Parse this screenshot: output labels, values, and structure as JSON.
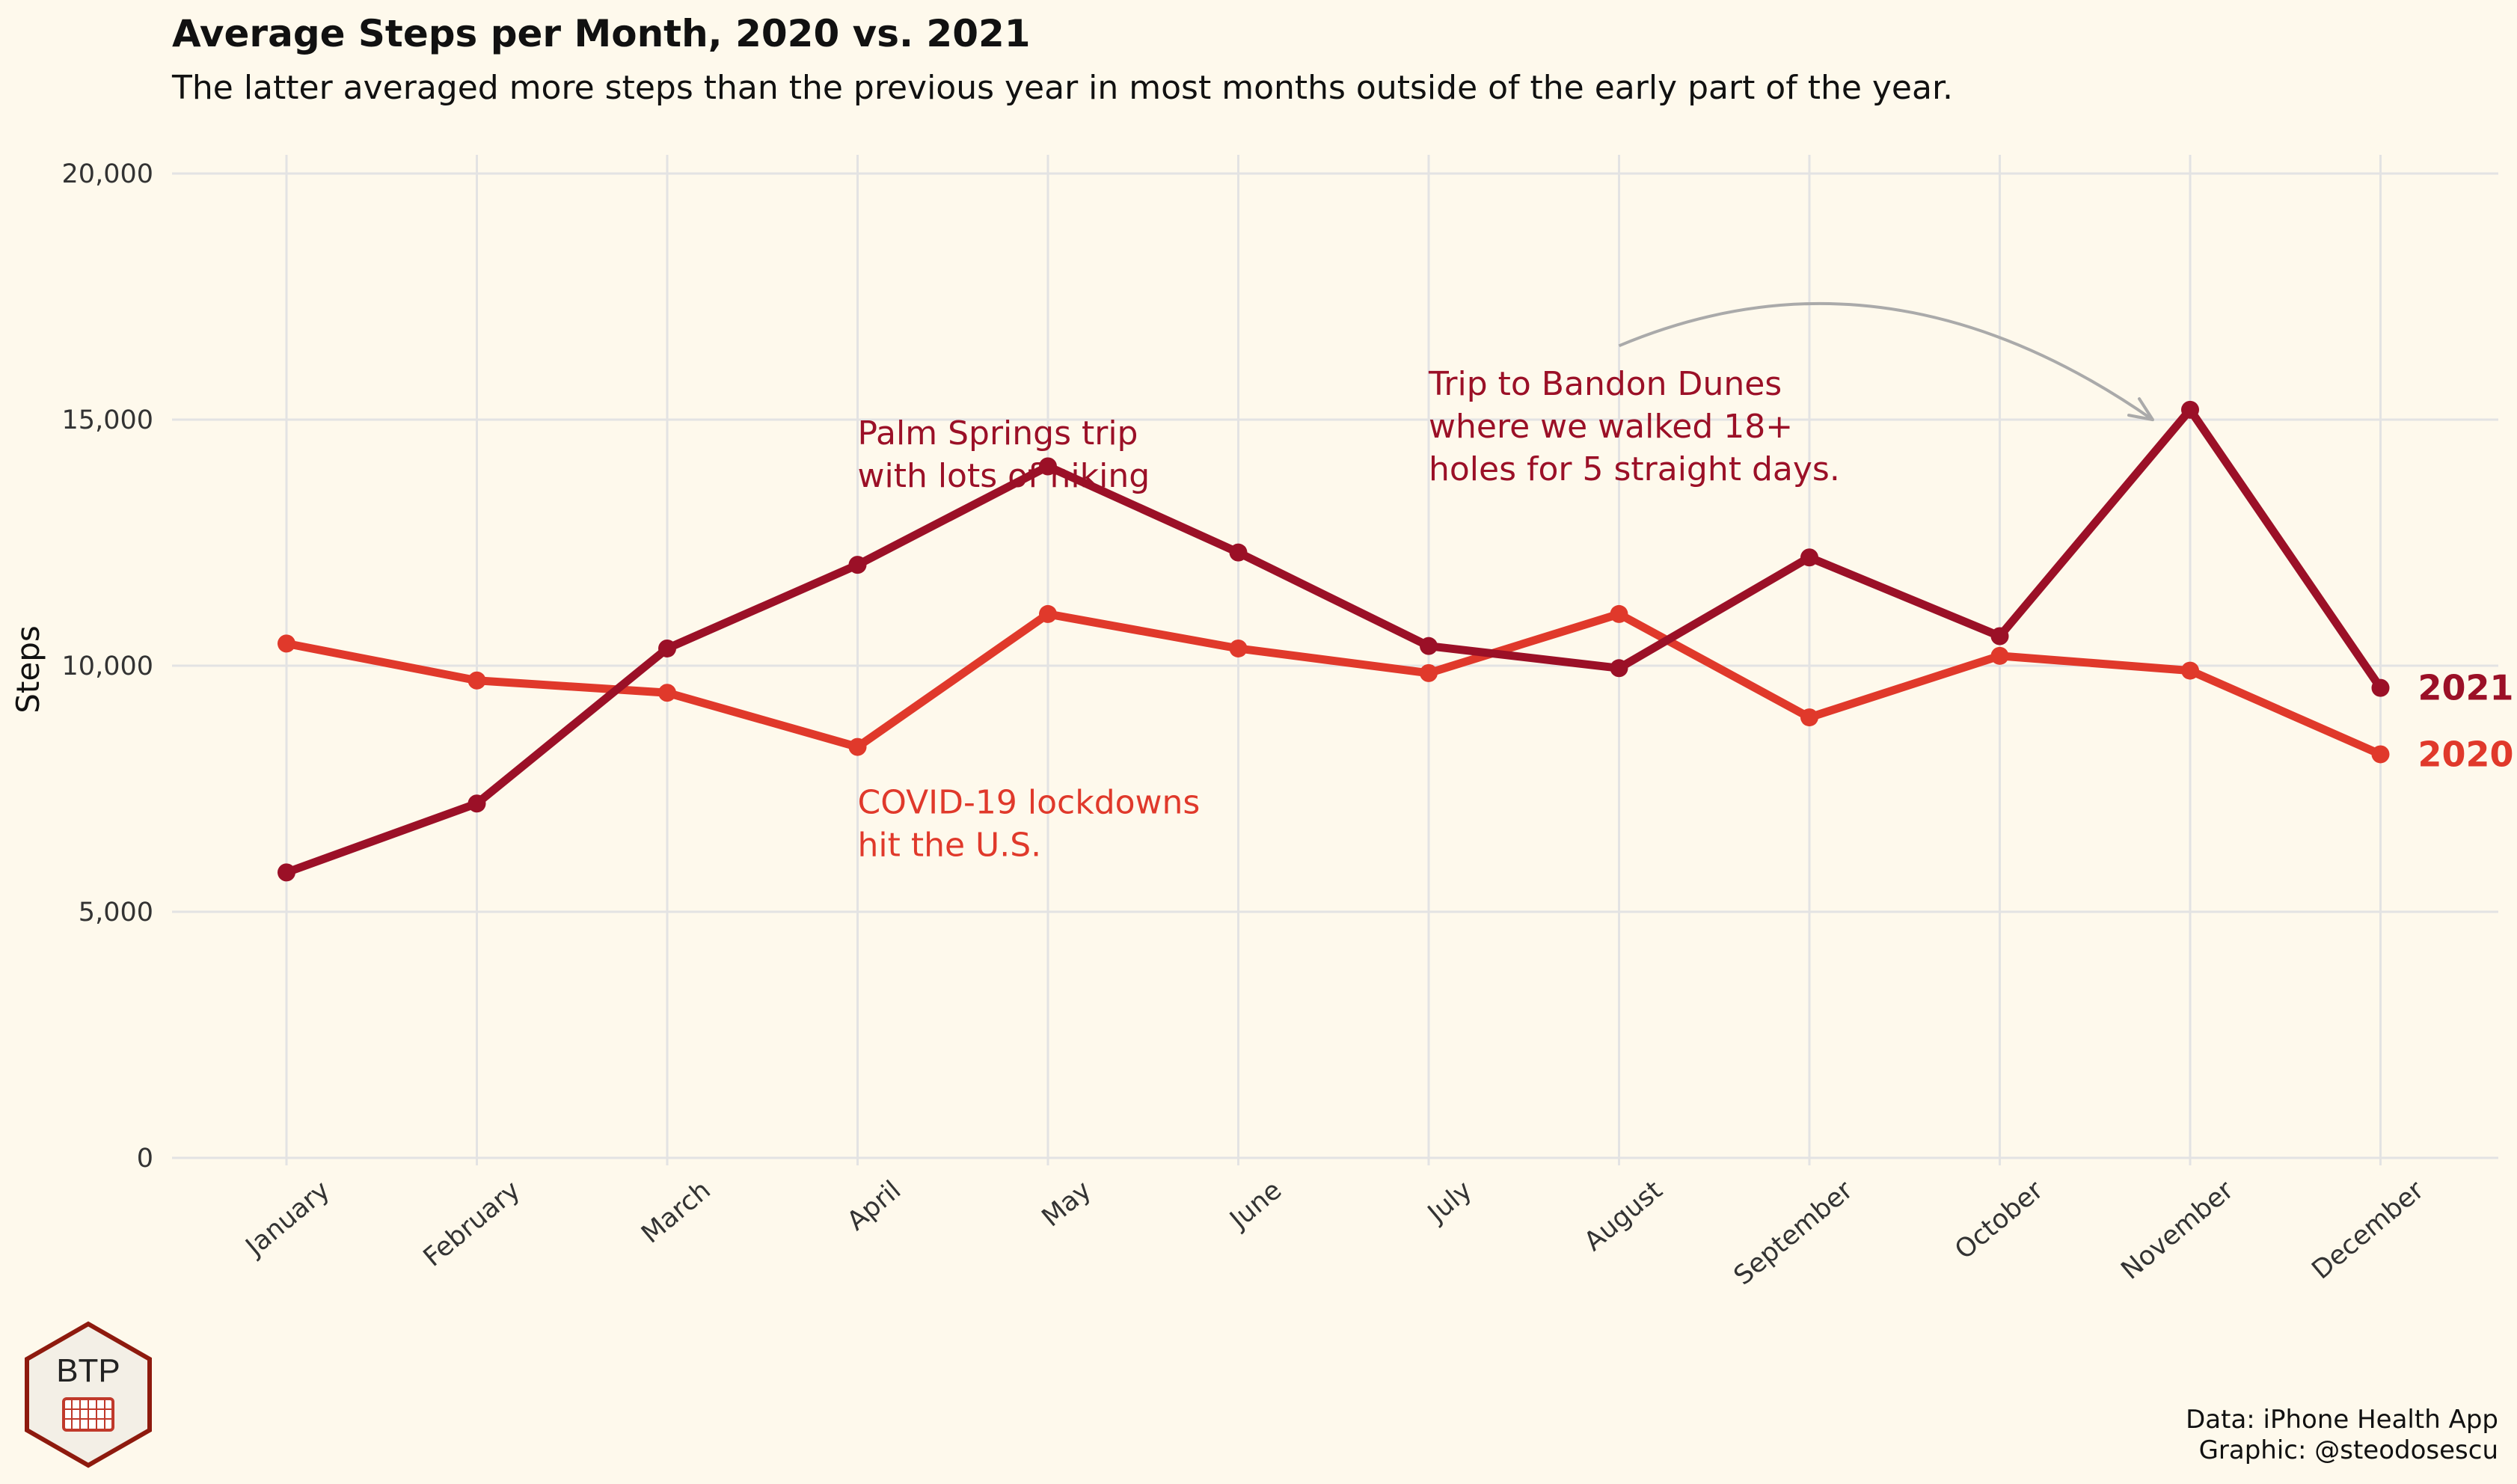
{
  "chart_data": {
    "type": "line",
    "title": "Average Steps per Month, 2020 vs. 2021",
    "subtitle": "The latter averaged more steps than the previous year in most months outside of the early part of the year.",
    "ylabel": "Steps",
    "xlabel": "",
    "ylim": [
      0,
      20000
    ],
    "yticks": [
      0,
      5000,
      10000,
      15000,
      20000
    ],
    "ytick_labels": [
      "0",
      "5,000",
      "10,000",
      "15,000",
      "20,000"
    ],
    "categories": [
      "January",
      "February",
      "March",
      "April",
      "May",
      "June",
      "July",
      "August",
      "September",
      "October",
      "November",
      "December"
    ],
    "grid": true,
    "legend": "direct labels at line ends",
    "series": [
      {
        "name": "2021",
        "color": "#9b1027",
        "values": [
          5800,
          7200,
          10350,
          12050,
          14050,
          12300,
          10400,
          9950,
          12200,
          10600,
          15200,
          9550
        ]
      },
      {
        "name": "2020",
        "color": "#e0392b",
        "values": [
          10450,
          9700,
          9450,
          8350,
          11050,
          10350,
          9850,
          11050,
          8950,
          10200,
          9900,
          8200
        ]
      }
    ],
    "annotations": [
      {
        "id": "palm-springs",
        "lines": [
          "Palm Springs trip",
          "with lots of hiking"
        ],
        "color": "#9b1027",
        "anchor_month": "April",
        "anchor_value": 14500
      },
      {
        "id": "covid",
        "lines": [
          "COVID-19 lockdowns",
          "hit the U.S."
        ],
        "color": "#e0392b",
        "anchor_month": "April",
        "anchor_value": 7000
      },
      {
        "id": "bandon",
        "lines": [
          "Trip to Bandon Dunes",
          "where we walked 18+",
          "holes for 5 straight days."
        ],
        "color": "#9b1027",
        "anchor_month": "July",
        "anchor_value": 15500
      }
    ],
    "arrow": {
      "from_month": "August",
      "from_value": 16500,
      "to_month": "November",
      "to_value": 15150,
      "color": "#aaaaaa"
    },
    "caption": [
      "Data: iPhone Health App",
      "Graphic: @steodosescu"
    ]
  },
  "logo": {
    "text": "BTP",
    "icon": "hockey-net-icon"
  },
  "colors": {
    "background": "#fef9ec",
    "grid": "#e3e3e3"
  }
}
